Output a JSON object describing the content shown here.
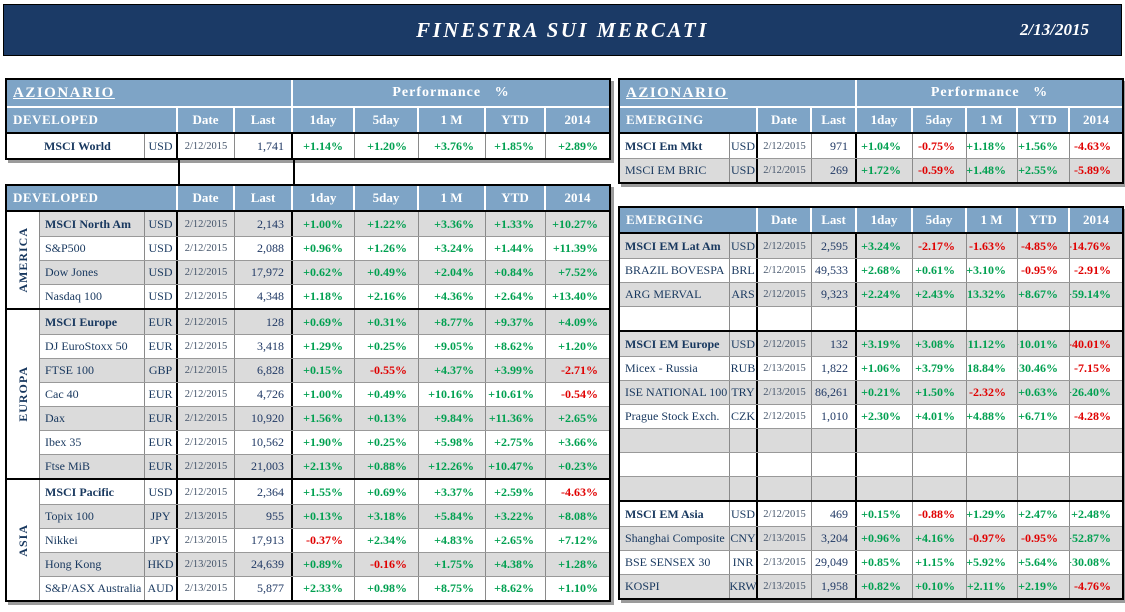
{
  "title_bar": {
    "title": "FINESTRA SUI MERCATI",
    "date": "2/13/2015"
  },
  "section_title": "AZIONARIO",
  "performance_header": "Performance %",
  "columns": {
    "date": "Date",
    "last": "Last",
    "perf": [
      "1day",
      "5day",
      "1 M",
      "YTD",
      "2014"
    ]
  },
  "colors": {
    "title_navy": "#1B3A66",
    "header_blue": "#7EA4C6",
    "row_gray": "#DBDBDB",
    "positive_green": "#00A050",
    "negative_red": "#E00000",
    "name_navy": "#17375E"
  },
  "left": {
    "group": "DEVELOPED",
    "summary": [
      {
        "name": "MSCI World",
        "bold": true,
        "indent": true,
        "ccy": "USD",
        "date": "2/12/2015",
        "last": "1,741",
        "perf": [
          "+1.14%",
          "+1.20%",
          "+3.76%",
          "+1.85%",
          "+2.89%"
        ]
      }
    ],
    "regions": [
      {
        "label": "AMERICA",
        "rows": [
          {
            "name": "MSCI North Am",
            "bold": true,
            "ccy": "USD",
            "date": "2/12/2015",
            "last": "2,143",
            "perf": [
              "+1.00%",
              "+1.22%",
              "+3.36%",
              "+1.33%",
              "+10.27%"
            ]
          },
          {
            "name": "S&P500",
            "ccy": "USD",
            "date": "2/12/2015",
            "last": "2,088",
            "perf": [
              "+0.96%",
              "+1.26%",
              "+3.24%",
              "+1.44%",
              "+11.39%"
            ]
          },
          {
            "name": "Dow Jones",
            "ccy": "USD",
            "date": "2/12/2015",
            "last": "17,972",
            "perf": [
              "+0.62%",
              "+0.49%",
              "+2.04%",
              "+0.84%",
              "+7.52%"
            ]
          },
          {
            "name": "Nasdaq 100",
            "ccy": "USD",
            "date": "2/12/2015",
            "last": "4,348",
            "perf": [
              "+1.18%",
              "+2.16%",
              "+4.36%",
              "+2.64%",
              "+13.40%"
            ]
          }
        ]
      },
      {
        "label": "EUROPA",
        "rows": [
          {
            "name": "MSCI Europe",
            "bold": true,
            "ccy": "EUR",
            "date": "2/12/2015",
            "last": "128",
            "perf": [
              "+0.69%",
              "+0.31%",
              "+8.77%",
              "+9.37%",
              "+4.09%"
            ]
          },
          {
            "name": "DJ EuroStoxx 50",
            "ccy": "EUR",
            "date": "2/12/2015",
            "last": "3,418",
            "perf": [
              "+1.29%",
              "+0.25%",
              "+9.05%",
              "+8.62%",
              "+1.20%"
            ]
          },
          {
            "name": "FTSE 100",
            "ccy": "GBP",
            "date": "2/12/2015",
            "last": "6,828",
            "perf": [
              "+0.15%",
              "-0.55%",
              "+4.37%",
              "+3.99%",
              "-2.71%"
            ]
          },
          {
            "name": "Cac 40",
            "ccy": "EUR",
            "date": "2/12/2015",
            "last": "4,726",
            "perf": [
              "+1.00%",
              "+0.49%",
              "+10.16%",
              "+10.61%",
              "-0.54%"
            ]
          },
          {
            "name": "Dax",
            "ccy": "EUR",
            "date": "2/12/2015",
            "last": "10,920",
            "perf": [
              "+1.56%",
              "+0.13%",
              "+9.84%",
              "+11.36%",
              "+2.65%"
            ]
          },
          {
            "name": "Ibex 35",
            "ccy": "EUR",
            "date": "2/12/2015",
            "last": "10,562",
            "perf": [
              "+1.90%",
              "+0.25%",
              "+5.98%",
              "+2.75%",
              "+3.66%"
            ]
          },
          {
            "name": "Ftse MiB",
            "ccy": "EUR",
            "date": "2/12/2015",
            "last": "21,003",
            "perf": [
              "+2.13%",
              "+0.88%",
              "+12.26%",
              "+10.47%",
              "+0.23%"
            ]
          }
        ]
      },
      {
        "label": "ASIA",
        "rows": [
          {
            "name": "MSCI Pacific",
            "bold": true,
            "ccy": "USD",
            "date": "2/12/2015",
            "last": "2,364",
            "perf": [
              "+1.55%",
              "+0.69%",
              "+3.37%",
              "+2.59%",
              "-4.63%"
            ]
          },
          {
            "name": "Topix 100",
            "ccy": "JPY",
            "date": "2/13/2015",
            "last": "955",
            "perf": [
              "+0.13%",
              "+3.18%",
              "+5.84%",
              "+3.22%",
              "+8.08%"
            ]
          },
          {
            "name": "Nikkei",
            "ccy": "JPY",
            "date": "2/13/2015",
            "last": "17,913",
            "perf": [
              "-0.37%",
              "+2.34%",
              "+4.83%",
              "+2.65%",
              "+7.12%"
            ]
          },
          {
            "name": "Hong Kong",
            "ccy": "HKD",
            "date": "2/13/2015",
            "last": "24,639",
            "perf": [
              "+0.89%",
              "-0.16%",
              "+1.75%",
              "+4.38%",
              "+1.28%"
            ]
          },
          {
            "name": "S&P/ASX Australia",
            "ccy": "AUD",
            "date": "2/13/2015",
            "last": "5,877",
            "perf": [
              "+2.33%",
              "+0.98%",
              "+8.75%",
              "+8.62%",
              "+1.10%"
            ]
          }
        ]
      }
    ]
  },
  "right": {
    "group": "EMERGING",
    "summary": [
      {
        "name": "MSCI Em Mkt",
        "bold": true,
        "ccy": "USD",
        "date": "2/12/2015",
        "last": "971",
        "perf": [
          "+1.04%",
          "-0.75%",
          "+1.18%",
          "+1.56%",
          "-4.63%"
        ]
      },
      {
        "name": "MSCI EM BRIC",
        "ccy": "USD",
        "date": "2/12/2015",
        "last": "269",
        "perf": [
          "+1.72%",
          "-0.59%",
          "+1.48%",
          "+2.55%",
          "-5.89%"
        ]
      }
    ],
    "regions": [
      {
        "label": "",
        "rows": [
          {
            "name": "MSCI EM Lat Am",
            "bold": true,
            "ccy": "USD",
            "date": "2/12/2015",
            "last": "2,595",
            "perf": [
              "+3.24%",
              "-2.17%",
              "-1.63%",
              "-4.85%",
              "-14.76%"
            ]
          },
          {
            "name": "BRAZIL BOVESPA",
            "ccy": "BRL",
            "date": "2/12/2015",
            "last": "49,533",
            "perf": [
              "+2.68%",
              "+0.61%",
              "+3.10%",
              "-0.95%",
              "-2.91%"
            ]
          },
          {
            "name": "ARG MERVAL",
            "ccy": "ARS",
            "date": "2/12/2015",
            "last": "9,323",
            "perf": [
              "+2.24%",
              "+2.43%",
              "+13.32%",
              "+8.67%",
              "+59.14%"
            ]
          },
          {
            "spacer": true
          }
        ]
      },
      {
        "label": "",
        "rows": [
          {
            "name": "MSCI EM Europe",
            "bold": true,
            "ccy": "USD",
            "date": "2/12/2015",
            "last": "132",
            "perf": [
              "+3.19%",
              "+3.08%",
              "+11.12%",
              "+10.01%",
              "-40.01%"
            ]
          },
          {
            "name": "Micex - Russia",
            "ccy": "RUB",
            "date": "2/13/2015",
            "last": "1,822",
            "perf": [
              "+1.06%",
              "+3.79%",
              "+18.84%",
              "+30.46%",
              "-7.15%"
            ]
          },
          {
            "name": "ISE NATIONAL 100",
            "ccy": "TRY",
            "date": "2/13/2015",
            "last": "86,261",
            "perf": [
              "+0.21%",
              "+1.50%",
              "-2.32%",
              "+0.63%",
              "+26.40%"
            ]
          },
          {
            "name": "Prague Stock Exch.",
            "ccy": "CZK",
            "date": "2/12/2015",
            "last": "1,010",
            "perf": [
              "+2.30%",
              "+4.01%",
              "+4.88%",
              "+6.71%",
              "-4.28%"
            ]
          },
          {
            "spacer": true
          },
          {
            "spacer": true
          },
          {
            "spacer": true
          }
        ]
      },
      {
        "label": "",
        "rows": [
          {
            "name": "MSCI EM Asia",
            "bold": true,
            "ccy": "USD",
            "date": "2/12/2015",
            "last": "469",
            "perf": [
              "+0.15%",
              "-0.88%",
              "+1.29%",
              "+2.47%",
              "+2.48%"
            ]
          },
          {
            "name": "Shanghai Composite",
            "ccy": "CNY",
            "date": "2/13/2015",
            "last": "3,204",
            "perf": [
              "+0.96%",
              "+4.16%",
              "-0.97%",
              "-0.95%",
              "+52.87%"
            ]
          },
          {
            "name": "BSE SENSEX 30",
            "ccy": "INR",
            "date": "2/13/2015",
            "last": "29,049",
            "perf": [
              "+0.85%",
              "+1.15%",
              "+5.92%",
              "+5.64%",
              "+30.08%"
            ]
          },
          {
            "name": "KOSPI",
            "ccy": "KRW",
            "date": "2/13/2015",
            "last": "1,958",
            "perf": [
              "+0.82%",
              "+0.10%",
              "+2.11%",
              "+2.19%",
              "-4.76%"
            ]
          }
        ]
      }
    ]
  }
}
